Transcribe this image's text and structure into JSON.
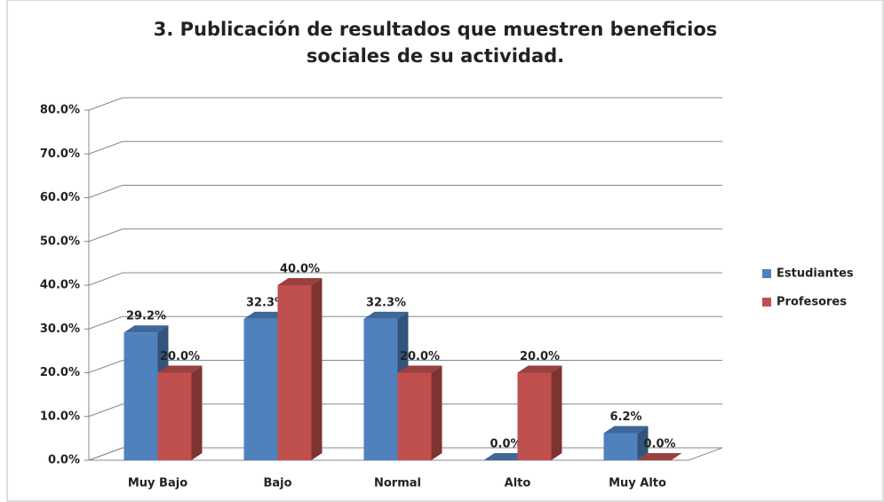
{
  "chart_data": {
    "type": "bar3d",
    "title": [
      "3.  Publicación de resultados que muestren beneficios",
      "sociales de su actividad."
    ],
    "categories": [
      "Muy Bajo",
      "Bajo",
      "Normal",
      "Alto",
      "Muy Alto"
    ],
    "series": [
      {
        "name": "Estudiantes",
        "color": "#4f81bd",
        "values": [
          29.2,
          32.3,
          32.3,
          0,
          6.2
        ],
        "value_labels": [
          "29.2%",
          "32.3%",
          "32.3%",
          "0.0%",
          "6.2%"
        ]
      },
      {
        "name": "Profesores",
        "color": "#c0504d",
        "values": [
          20,
          40,
          20,
          20,
          0
        ],
        "value_labels": [
          "20.0%",
          "40.0%",
          "20.0%",
          "20.0%",
          "0.0%"
        ]
      }
    ],
    "ylim": [
      0,
      80
    ],
    "yticks": [
      {
        "value": 0,
        "label": "0.0%"
      },
      {
        "value": 10,
        "label": "10.0%"
      },
      {
        "value": 20,
        "label": "20.0%"
      },
      {
        "value": 30,
        "label": "30.0%"
      },
      {
        "value": 40,
        "label": "40.0%"
      },
      {
        "value": 50,
        "label": "50.0%"
      },
      {
        "value": 60,
        "label": "60.0%"
      },
      {
        "value": 70,
        "label": "70.0%"
      },
      {
        "value": 80,
        "label": "80.0%"
      }
    ],
    "grid": true,
    "legend": "right"
  }
}
